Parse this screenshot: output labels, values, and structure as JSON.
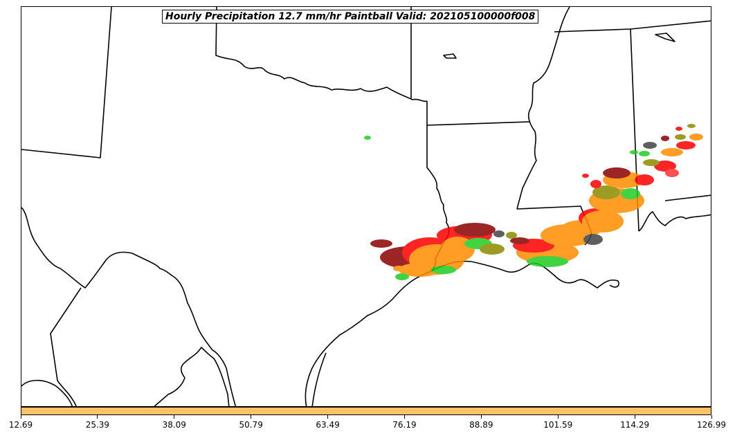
{
  "map": {
    "title": "Hourly Precipitation 12.7 mm/hr Paintball Valid: 202105100000f008",
    "border_color": "#000000",
    "paintball_colors": [
      "#ff0000",
      "#ff8c00",
      "#22cc22",
      "#8b8b00",
      "#8b0000",
      "#444444",
      "#ff3333"
    ]
  },
  "colorbar": {
    "fill_color": "#ffc266",
    "tick_labels": [
      "12.69",
      "25.39",
      "38.09",
      "50.79",
      "63.49",
      "76.19",
      "88.89",
      "101.59",
      "114.29",
      "126.99"
    ]
  }
}
